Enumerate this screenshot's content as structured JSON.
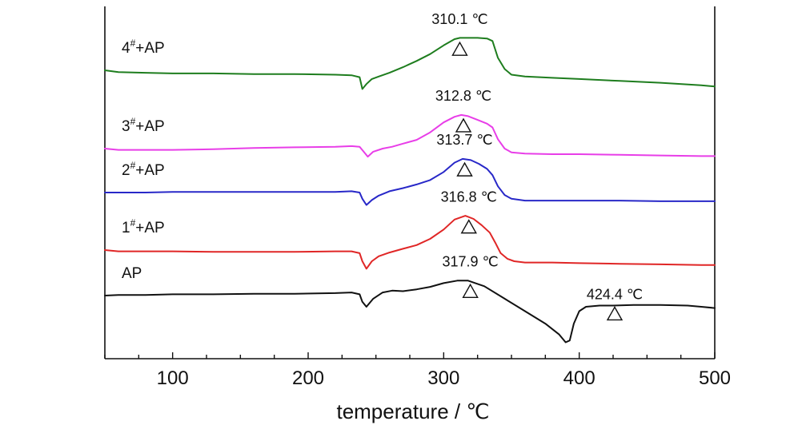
{
  "chart_data": {
    "type": "line",
    "xlabel": "temperature / ℃",
    "ylabel": "",
    "xlim": [
      50,
      500
    ],
    "xticks": [
      100,
      200,
      300,
      400,
      500
    ],
    "grid": false,
    "y_axis_ticks_shown": false,
    "series": [
      {
        "name": "4#+AP",
        "label_main": "4",
        "label_sup": "#",
        "label_rest": "+AP",
        "color": "#1e7d1e",
        "offset": 4,
        "x": [
          50,
          60,
          80,
          100,
          130,
          160,
          190,
          220,
          232,
          238,
          240,
          243,
          247,
          252,
          260,
          270,
          280,
          290,
          300,
          308,
          312,
          318,
          325,
          332,
          336,
          340,
          345,
          350,
          360,
          380,
          400,
          430,
          460,
          490,
          500
        ],
        "y": [
          0.0,
          -0.03,
          -0.04,
          -0.05,
          -0.05,
          -0.06,
          -0.06,
          -0.07,
          -0.08,
          -0.11,
          -0.3,
          -0.22,
          -0.14,
          -0.1,
          -0.04,
          0.05,
          0.15,
          0.26,
          0.4,
          0.5,
          0.52,
          0.52,
          0.52,
          0.51,
          0.47,
          0.2,
          0.02,
          -0.07,
          -0.1,
          -0.12,
          -0.14,
          -0.17,
          -0.2,
          -0.24,
          -0.26
        ]
      },
      {
        "name": "3#+AP",
        "label_main": "3",
        "label_sup": "#",
        "label_rest": "+AP",
        "color": "#e83ee8",
        "offset": 3,
        "x": [
          50,
          60,
          80,
          100,
          130,
          160,
          190,
          220,
          232,
          238,
          241,
          244,
          248,
          255,
          262,
          270,
          280,
          290,
          300,
          308,
          313,
          318,
          325,
          332,
          336,
          340,
          345,
          350,
          360,
          380,
          400,
          430,
          460,
          490,
          500
        ],
        "y": [
          0.0,
          -0.02,
          -0.02,
          -0.02,
          -0.01,
          0.01,
          0.02,
          0.03,
          0.04,
          0.03,
          -0.05,
          -0.13,
          -0.05,
          0.0,
          0.03,
          0.08,
          0.14,
          0.26,
          0.42,
          0.51,
          0.54,
          0.52,
          0.46,
          0.4,
          0.34,
          0.15,
          0.0,
          -0.06,
          -0.08,
          -0.09,
          -0.09,
          -0.1,
          -0.11,
          -0.12,
          -0.12
        ]
      },
      {
        "name": "2#+AP",
        "label_main": "2",
        "label_sup": "#",
        "label_rest": "+AP",
        "color": "#2828c8",
        "offset": 2,
        "x": [
          50,
          60,
          80,
          100,
          130,
          160,
          190,
          220,
          232,
          238,
          240,
          243,
          247,
          252,
          260,
          270,
          280,
          290,
          300,
          308,
          314,
          320,
          326,
          332,
          336,
          340,
          345,
          350,
          360,
          380,
          400,
          430,
          460,
          490,
          500
        ],
        "y": [
          0.0,
          0.0,
          0.0,
          0.01,
          0.01,
          0.01,
          0.01,
          0.01,
          0.02,
          0.0,
          -0.1,
          -0.2,
          -0.12,
          -0.05,
          0.02,
          0.07,
          0.13,
          0.2,
          0.33,
          0.48,
          0.54,
          0.52,
          0.46,
          0.38,
          0.28,
          0.1,
          -0.04,
          -0.1,
          -0.13,
          -0.13,
          -0.13,
          -0.13,
          -0.14,
          -0.14,
          -0.14
        ]
      },
      {
        "name": "1#+AP",
        "label_main": "1",
        "label_sup": "#",
        "label_rest": "+AP",
        "color": "#e02626",
        "offset": 1,
        "x": [
          50,
          60,
          80,
          100,
          130,
          160,
          190,
          220,
          232,
          238,
          240,
          243,
          247,
          252,
          260,
          270,
          280,
          290,
          300,
          308,
          316,
          322,
          328,
          334,
          338,
          342,
          347,
          352,
          360,
          380,
          400,
          430,
          460,
          490,
          500
        ],
        "y": [
          0.0,
          -0.02,
          -0.02,
          -0.02,
          -0.03,
          -0.03,
          -0.03,
          -0.02,
          -0.02,
          -0.05,
          -0.18,
          -0.3,
          -0.18,
          -0.1,
          -0.04,
          0.02,
          0.08,
          0.18,
          0.33,
          0.49,
          0.55,
          0.5,
          0.4,
          0.28,
          0.12,
          -0.05,
          -0.14,
          -0.18,
          -0.2,
          -0.2,
          -0.21,
          -0.22,
          -0.23,
          -0.24,
          -0.24
        ]
      },
      {
        "name": "AP",
        "label_main": "AP",
        "label_sup": "",
        "label_rest": "",
        "color": "#111111",
        "offset": 0,
        "x": [
          50,
          60,
          80,
          100,
          130,
          160,
          190,
          220,
          232,
          238,
          240,
          243,
          248,
          255,
          262,
          270,
          280,
          290,
          300,
          310,
          318,
          330,
          345,
          360,
          375,
          385,
          390,
          393,
          396,
          400,
          405,
          415,
          425,
          440,
          460,
          480,
          490,
          500
        ],
        "y": [
          0.0,
          0.01,
          0.01,
          0.02,
          0.02,
          0.03,
          0.03,
          0.04,
          0.05,
          0.02,
          -0.1,
          -0.18,
          -0.05,
          0.05,
          0.08,
          0.07,
          0.1,
          0.14,
          0.2,
          0.24,
          0.24,
          0.15,
          -0.05,
          -0.25,
          -0.45,
          -0.62,
          -0.75,
          -0.72,
          -0.45,
          -0.25,
          -0.18,
          -0.16,
          -0.16,
          -0.15,
          -0.15,
          -0.16,
          -0.18,
          -0.2
        ]
      }
    ],
    "annotations": [
      {
        "text": "310.1 ℃",
        "x": 310.1,
        "series": "4#+AP"
      },
      {
        "text": "312.8 ℃",
        "x": 312.8,
        "series": "3#+AP"
      },
      {
        "text": "313.7 ℃",
        "x": 313.7,
        "series": "2#+AP"
      },
      {
        "text": "316.8 ℃",
        "x": 316.8,
        "series": "1#+AP"
      },
      {
        "text": "317.9 ℃",
        "x": 317.9,
        "series": "AP"
      },
      {
        "text": "424.4 ℃",
        "x": 424.4,
        "series": "AP"
      }
    ],
    "marker": "triangle"
  }
}
